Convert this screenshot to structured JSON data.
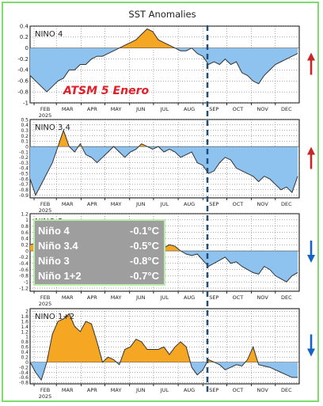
{
  "page": {
    "title": "SST Anomalies"
  },
  "months": [
    "FEB",
    "MAR",
    "APR",
    "MAY",
    "JUN",
    "JUL",
    "AUG",
    "SEP",
    "OCT",
    "NOV",
    "DEC"
  ],
  "year_label": "2025",
  "annotation": "ATSM 5 Enero",
  "summary": {
    "rows": [
      {
        "label": "Niño 4",
        "value": "-0.1°C"
      },
      {
        "label": "Niño 3.4",
        "value": "-0.5°C"
      },
      {
        "label": "Niño 3",
        "value": "-0.8°C"
      },
      {
        "label": "Niño 1+2",
        "value": "-0.7°C"
      }
    ]
  },
  "colors": {
    "positive_fill": "#f5a623",
    "negative_fill": "#8ec3f0",
    "line": "#333333",
    "frame": "#7ddc6a",
    "dashed_line": "#1f4e79",
    "arrow_up": "#c62828",
    "arrow_down": "#1565c0",
    "annotation": "#e0202a"
  },
  "chart_data": [
    {
      "type": "area",
      "title": "NINO 4",
      "x": [
        "2025-01-27",
        "2025-02-03",
        "2025-02-10",
        "2025-02-17",
        "2025-02-24",
        "2025-03-03",
        "2025-03-10",
        "2025-03-17",
        "2025-03-24",
        "2025-03-31",
        "2025-04-07",
        "2025-04-14",
        "2025-04-21",
        "2025-04-28",
        "2025-05-05",
        "2025-05-12",
        "2025-05-19",
        "2025-05-26",
        "2025-06-02",
        "2025-06-09",
        "2025-06-16",
        "2025-06-23",
        "2025-06-30",
        "2025-07-07",
        "2025-07-14",
        "2025-07-21",
        "2025-07-28",
        "2025-08-04",
        "2025-08-11",
        "2025-08-18",
        "2025-08-25",
        "2025-09-01",
        "2025-09-08",
        "2025-09-15",
        "2025-09-22",
        "2025-09-29",
        "2025-10-06",
        "2025-10-13",
        "2025-10-20",
        "2025-10-27",
        "2025-11-03",
        "2025-11-10",
        "2025-11-17",
        "2025-11-24",
        "2025-12-01",
        "2025-12-08",
        "2025-12-15",
        "2025-12-22",
        "2025-12-29"
      ],
      "values": [
        -0.5,
        -0.6,
        -0.7,
        -0.8,
        -0.7,
        -0.6,
        -0.55,
        -0.4,
        -0.4,
        -0.3,
        -0.3,
        -0.2,
        -0.15,
        -0.15,
        -0.1,
        -0.05,
        0.0,
        0.05,
        0.1,
        0.15,
        0.25,
        0.35,
        0.3,
        0.15,
        0.1,
        0.05,
        0.0,
        -0.05,
        -0.05,
        0.0,
        -0.1,
        -0.15,
        -0.3,
        -0.25,
        -0.3,
        -0.2,
        -0.3,
        -0.25,
        -0.45,
        -0.5,
        -0.6,
        -0.65,
        -0.5,
        -0.4,
        -0.3,
        -0.25,
        -0.2,
        -0.15,
        -0.1
      ],
      "y_ticks": [
        "0.4",
        "0.2",
        "0",
        "-0.2",
        "-0.4",
        "-0.6",
        "-0.8",
        "-1"
      ],
      "ylim": [
        -1,
        0.4
      ],
      "trend": "up"
    },
    {
      "type": "area",
      "title": "NINO 3.4",
      "x": [
        "2025-01-27",
        "2025-02-03",
        "2025-02-10",
        "2025-02-17",
        "2025-02-24",
        "2025-03-03",
        "2025-03-10",
        "2025-03-17",
        "2025-03-24",
        "2025-03-31",
        "2025-04-07",
        "2025-04-14",
        "2025-04-21",
        "2025-04-28",
        "2025-05-05",
        "2025-05-12",
        "2025-05-19",
        "2025-05-26",
        "2025-06-02",
        "2025-06-09",
        "2025-06-16",
        "2025-06-23",
        "2025-06-30",
        "2025-07-07",
        "2025-07-14",
        "2025-07-21",
        "2025-07-28",
        "2025-08-04",
        "2025-08-11",
        "2025-08-18",
        "2025-08-25",
        "2025-09-01",
        "2025-09-08",
        "2025-09-15",
        "2025-09-22",
        "2025-09-29",
        "2025-10-06",
        "2025-10-13",
        "2025-10-20",
        "2025-10-27",
        "2025-11-03",
        "2025-11-10",
        "2025-11-17",
        "2025-11-24",
        "2025-12-01",
        "2025-12-08",
        "2025-12-15",
        "2025-12-22",
        "2025-12-29"
      ],
      "values": [
        -0.6,
        -0.9,
        -0.7,
        -0.5,
        -0.3,
        0.0,
        0.3,
        0.0,
        -0.1,
        0.05,
        -0.15,
        -0.2,
        -0.3,
        -0.2,
        -0.1,
        0.0,
        -0.1,
        -0.2,
        -0.1,
        -0.05,
        0.05,
        0.0,
        -0.05,
        0.0,
        -0.1,
        -0.05,
        -0.1,
        -0.2,
        -0.15,
        -0.1,
        -0.3,
        -0.35,
        -0.5,
        -0.45,
        -0.3,
        -0.2,
        -0.25,
        -0.4,
        -0.45,
        -0.5,
        -0.55,
        -0.65,
        -0.55,
        -0.6,
        -0.7,
        -0.8,
        -0.75,
        -0.85,
        -0.55
      ],
      "y_ticks": [
        "0.5",
        "0.4",
        "0.3",
        "0.2",
        "0.1",
        "0",
        "-0.1",
        "-0.2",
        "-0.3",
        "-0.4",
        "-0.5",
        "-0.6",
        "-0.7",
        "-0.8",
        "-0.9"
      ],
      "ylim": [
        -0.95,
        0.5
      ],
      "trend": "up"
    },
    {
      "type": "area",
      "title": "NINO 3",
      "x": [
        "2025-01-27",
        "2025-02-10",
        "2025-02-24",
        "2025-03-10",
        "2025-03-24",
        "2025-04-07",
        "2025-04-21",
        "2025-05-05",
        "2025-05-19",
        "2025-06-02",
        "2025-06-16",
        "2025-06-30",
        "2025-07-07",
        "2025-07-14",
        "2025-07-21",
        "2025-07-28",
        "2025-08-04",
        "2025-08-11",
        "2025-08-18",
        "2025-08-25",
        "2025-09-01",
        "2025-09-08",
        "2025-09-15",
        "2025-09-22",
        "2025-09-29",
        "2025-10-06",
        "2025-10-13",
        "2025-10-20",
        "2025-10-27",
        "2025-11-03",
        "2025-11-10",
        "2025-11-17",
        "2025-11-24",
        "2025-12-01",
        "2025-12-08",
        "2025-12-15",
        "2025-12-22",
        "2025-12-29"
      ],
      "values": [
        0.2,
        0.3,
        0.4,
        0.5,
        0.6,
        0.4,
        0.3,
        0.2,
        0.1,
        0.1,
        0.0,
        0.1,
        0.2,
        0.1,
        0.2,
        0.15,
        0.0,
        -0.1,
        -0.15,
        -0.1,
        -0.3,
        -0.5,
        -0.4,
        -0.3,
        -0.2,
        -0.4,
        -0.35,
        -0.5,
        -0.6,
        -0.7,
        -0.75,
        -0.5,
        -0.6,
        -0.8,
        -0.9,
        -1.0,
        -0.8,
        -0.7
      ],
      "y_ticks": [
        "1.2",
        "1",
        "0.8",
        "0.6",
        "0.4",
        "0.2",
        "0",
        "-0.2",
        "-0.4",
        "-0.6",
        "-0.8",
        "-1",
        "-1.2"
      ],
      "ylim": [
        -1.3,
        1.2
      ],
      "trend": "down"
    },
    {
      "type": "area",
      "title": "NINO 1+2",
      "x": [
        "2025-01-27",
        "2025-02-03",
        "2025-02-10",
        "2025-02-17",
        "2025-02-24",
        "2025-03-03",
        "2025-03-10",
        "2025-03-17",
        "2025-03-24",
        "2025-03-31",
        "2025-04-07",
        "2025-04-14",
        "2025-04-21",
        "2025-04-28",
        "2025-05-05",
        "2025-05-12",
        "2025-05-19",
        "2025-05-26",
        "2025-06-02",
        "2025-06-09",
        "2025-06-16",
        "2025-06-23",
        "2025-06-30",
        "2025-07-07",
        "2025-07-14",
        "2025-07-21",
        "2025-07-28",
        "2025-08-04",
        "2025-08-11",
        "2025-08-18",
        "2025-08-25",
        "2025-09-01",
        "2025-09-08",
        "2025-09-15",
        "2025-09-22",
        "2025-09-29",
        "2025-10-06",
        "2025-10-13",
        "2025-10-20",
        "2025-10-27",
        "2025-11-03",
        "2025-11-10",
        "2025-11-17",
        "2025-11-24",
        "2025-12-01",
        "2025-12-08",
        "2025-12-15",
        "2025-12-22",
        "2025-12-29"
      ],
      "values": [
        0.0,
        -0.4,
        -0.7,
        0.0,
        1.1,
        1.6,
        1.7,
        1.9,
        1.4,
        1.2,
        1.6,
        1.5,
        0.8,
        0.0,
        0.2,
        0.1,
        -0.1,
        0.5,
        0.6,
        0.9,
        0.8,
        0.5,
        0.5,
        0.5,
        0.6,
        0.3,
        0.6,
        0.8,
        0.6,
        -0.2,
        -0.5,
        -0.3,
        0.1,
        0.0,
        -0.1,
        -0.3,
        -0.2,
        -0.1,
        -0.15,
        0.1,
        0.6,
        -0.1,
        -0.15,
        -0.2,
        -0.3,
        -0.4,
        -0.5,
        -0.6,
        -0.6
      ],
      "y_ticks": [
        "2",
        "1.8",
        "1.6",
        "1.4",
        "1.2",
        "1",
        "0.8",
        "0.6",
        "0.4",
        "0.2",
        "0",
        "-0.2",
        "-0.4",
        "-0.6",
        "-0.8"
      ],
      "ylim": [
        -0.85,
        2.1
      ],
      "trend": "down"
    }
  ]
}
